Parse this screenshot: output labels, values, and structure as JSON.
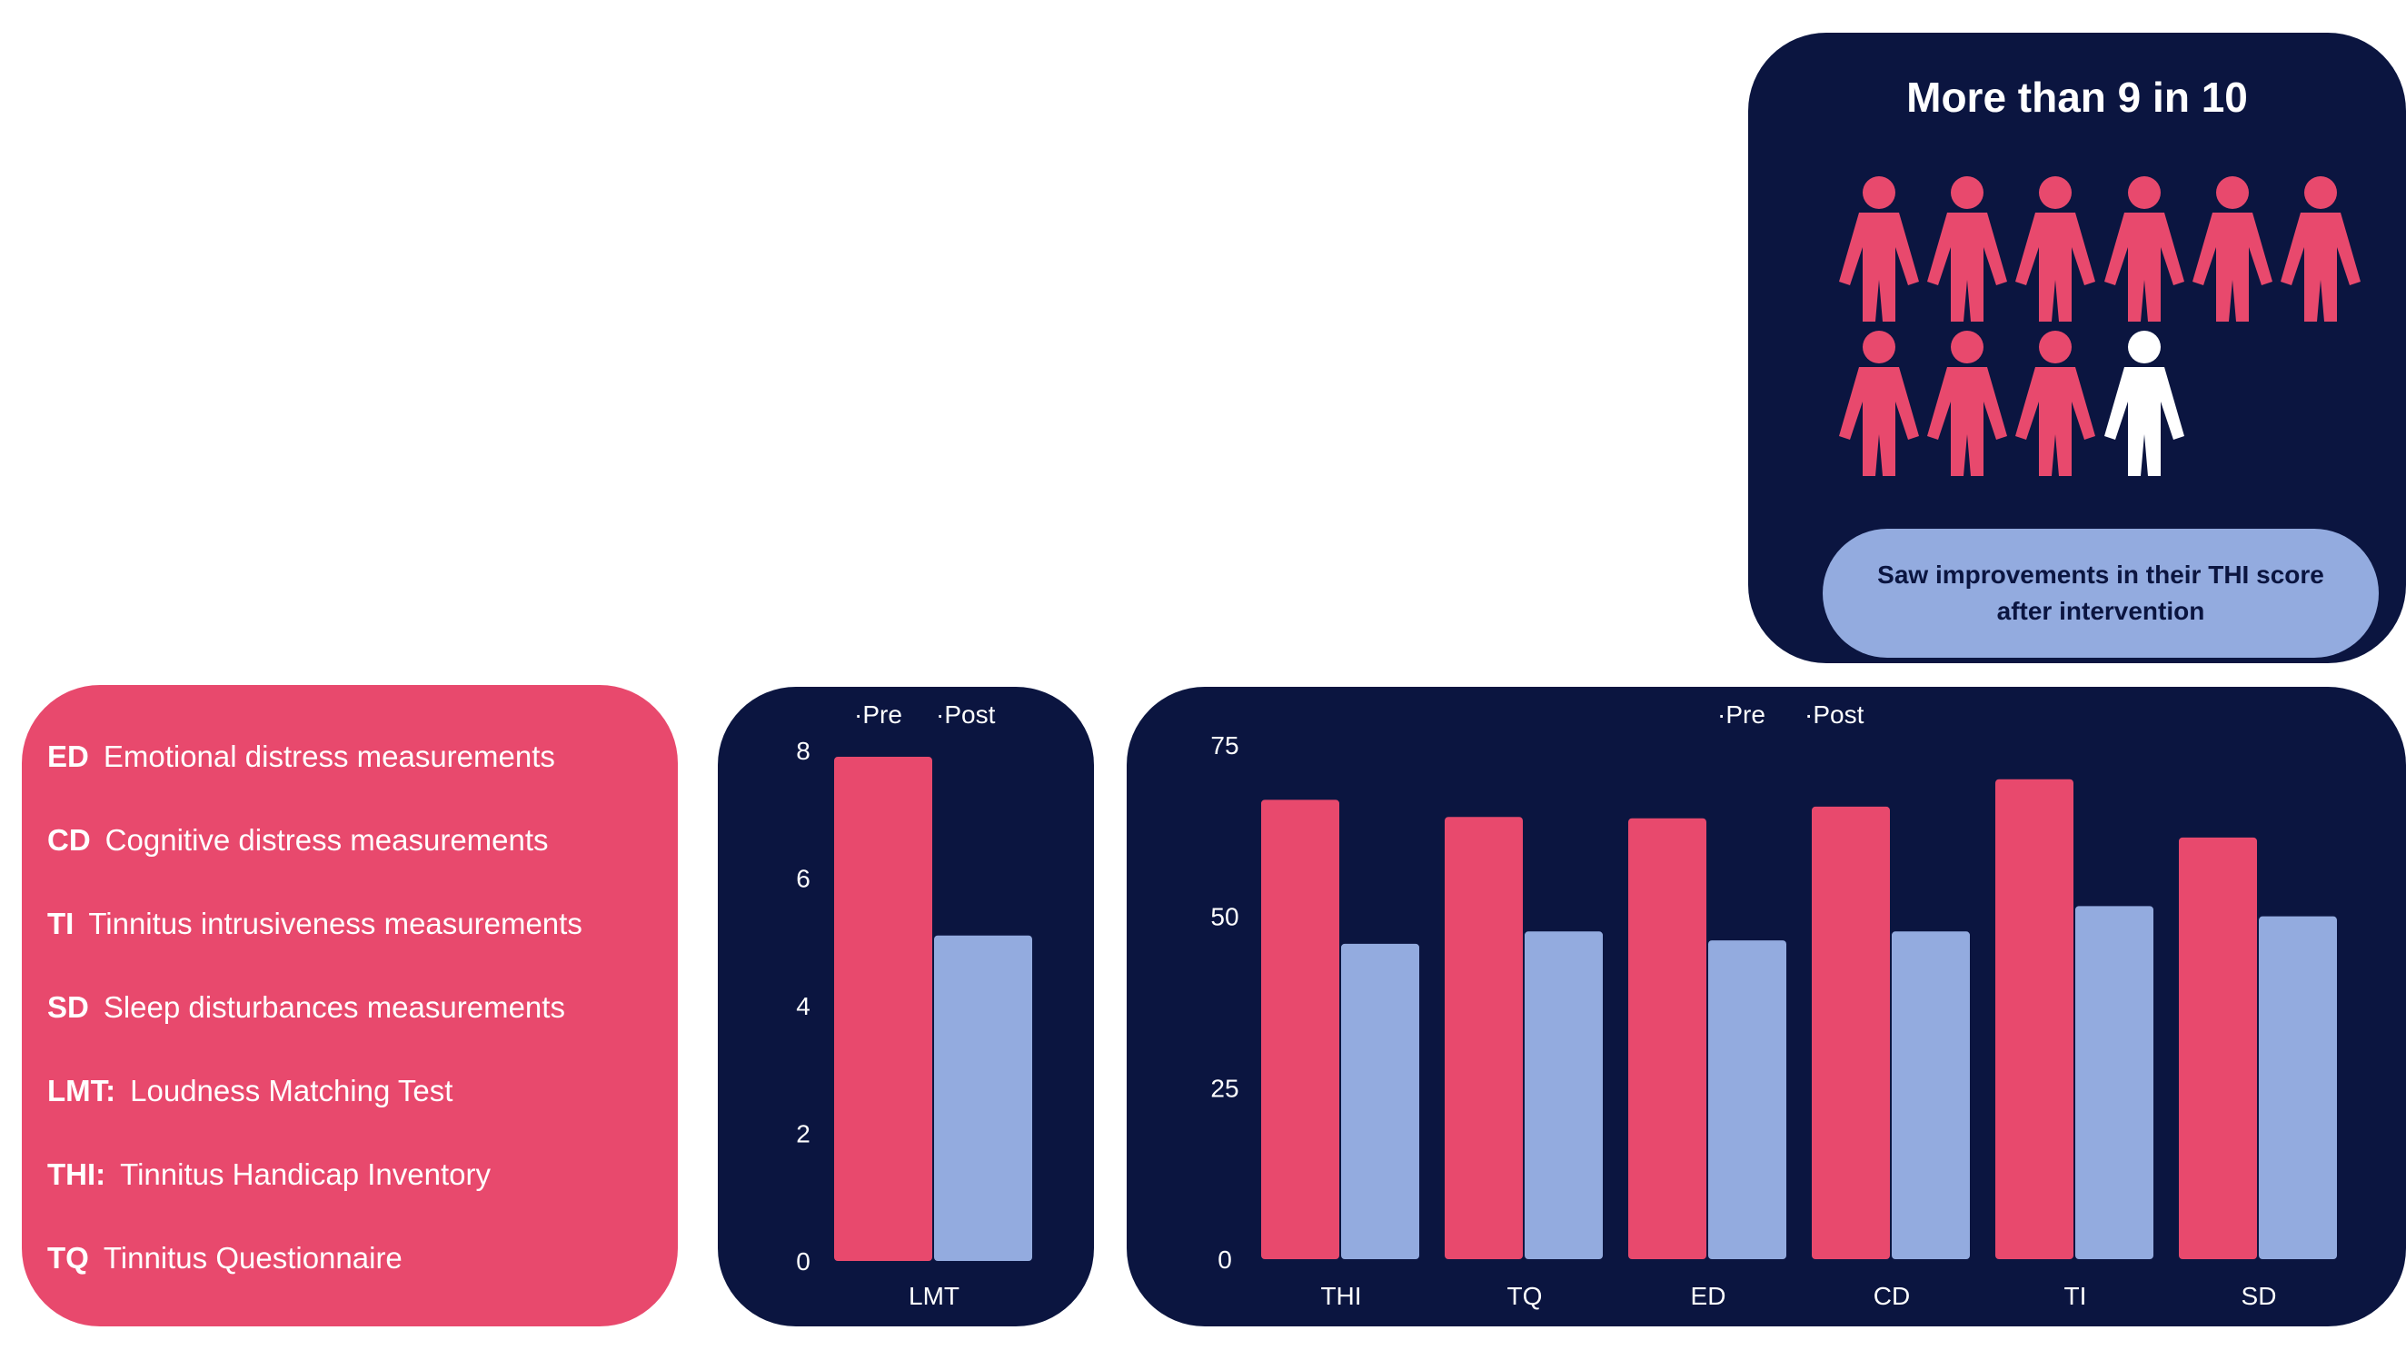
{
  "colors": {
    "pre": "#e8496d",
    "post": "#93abdf",
    "panel": "#0b1540",
    "white_person": "#ffffff"
  },
  "infographic": {
    "title": "More than 9 in 10",
    "caption": "Saw improvements in their THI score after intervention",
    "people": {
      "total": 10,
      "highlighted": 9,
      "icon": "person-icon"
    }
  },
  "legend": {
    "items": [
      {
        "abbr": "ED",
        "text": "Emotional distress measurements"
      },
      {
        "abbr": "CD",
        "text": "Cognitive distress measurements"
      },
      {
        "abbr": "TI",
        "text": "Tinnitus intrusiveness measurements"
      },
      {
        "abbr": "SD",
        "text": "Sleep disturbances measurements"
      },
      {
        "abbr": "LMT:",
        "text": "Loudness Matching Test"
      },
      {
        "abbr": "THI:",
        "text": "Tinnitus Handicap Inventory"
      },
      {
        "abbr": "TQ",
        "text": "Tinnitus Questionnaire"
      }
    ]
  },
  "chart_data": [
    {
      "type": "bar",
      "categories": [
        "LMT"
      ],
      "series": [
        {
          "name": "Pre",
          "values": [
            7.9
          ]
        },
        {
          "name": "Post",
          "values": [
            5.1
          ]
        }
      ],
      "ylim": [
        0,
        8
      ],
      "yticks": [
        0,
        2,
        4,
        6,
        8
      ],
      "legend_position": "top",
      "grid": false
    },
    {
      "type": "bar",
      "categories": [
        "THI",
        "TQ",
        "ED",
        "CD",
        "TI",
        "SD"
      ],
      "series": [
        {
          "name": "Pre",
          "values": [
            67,
            64.5,
            64.3,
            66,
            70,
            61.5
          ]
        },
        {
          "name": "Post",
          "values": [
            46,
            47.8,
            46.5,
            47.8,
            51.5,
            50
          ]
        }
      ],
      "ylim": [
        0,
        75
      ],
      "yticks": [
        0,
        25,
        50,
        75
      ],
      "legend_position": "top",
      "grid": false
    }
  ]
}
